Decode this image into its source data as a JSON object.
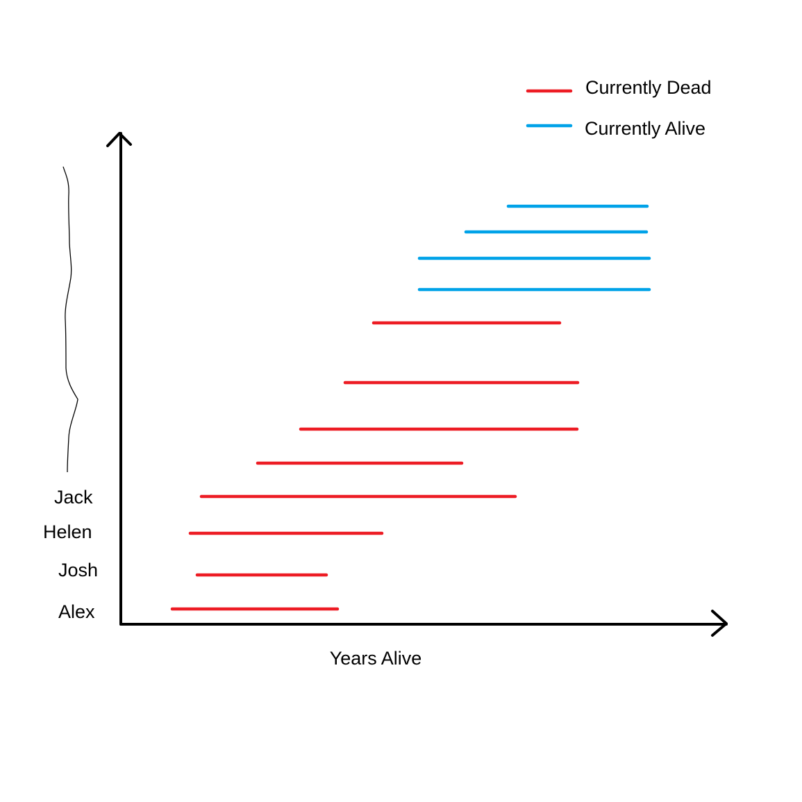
{
  "chart_data": {
    "type": "timeline",
    "xlabel": "Years Alive",
    "colors": {
      "dead": "#ed1c24",
      "alive": "#00a2e8",
      "axis": "#000000"
    },
    "legend": [
      {
        "label": "Currently Dead",
        "status": "dead"
      },
      {
        "label": "Currently Alive",
        "status": "alive"
      }
    ],
    "rows": [
      {
        "name": "Alex",
        "start": 248,
        "end": 486,
        "status": "dead"
      },
      {
        "name": "Josh",
        "start": 284,
        "end": 470,
        "status": "dead"
      },
      {
        "name": "Helen",
        "start": 274,
        "end": 550,
        "status": "dead"
      },
      {
        "name": "Jack",
        "start": 290,
        "end": 742,
        "status": "dead"
      },
      {
        "name": "",
        "start": 371,
        "end": 665,
        "status": "dead"
      },
      {
        "name": "",
        "start": 433,
        "end": 831,
        "status": "dead"
      },
      {
        "name": "",
        "start": 497,
        "end": 832,
        "status": "dead"
      },
      {
        "name": "",
        "start": 538,
        "end": 806,
        "status": "dead"
      },
      {
        "name": "",
        "start": 604,
        "end": 935,
        "status": "alive"
      },
      {
        "name": "",
        "start": 604,
        "end": 935,
        "status": "alive"
      },
      {
        "name": "",
        "start": 671,
        "end": 931,
        "status": "alive"
      },
      {
        "name": "",
        "start": 732,
        "end": 932,
        "status": "alive"
      }
    ]
  }
}
